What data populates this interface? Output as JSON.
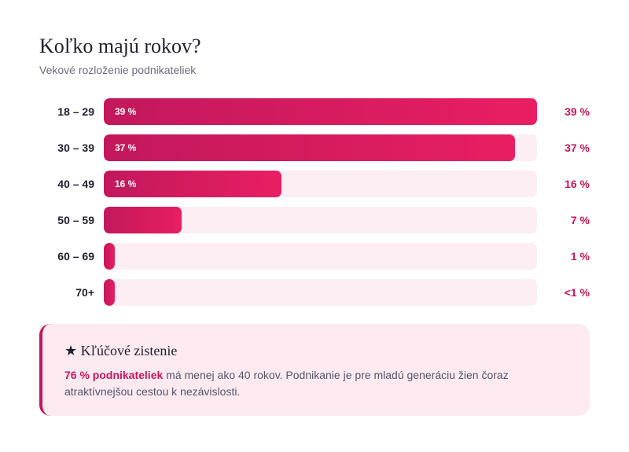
{
  "header": {
    "title": "Koľko majú rokov?",
    "subtitle": "Vekové rozloženie podnikateliek"
  },
  "chart_data": {
    "type": "bar",
    "orientation": "horizontal",
    "title": "Koľko majú rokov?",
    "subtitle": "Vekové rozloženie podnikateliek",
    "categories": [
      "18 – 29",
      "30 – 39",
      "40 – 49",
      "50 – 59",
      "60 – 69",
      "70+"
    ],
    "values": [
      39,
      37,
      16,
      7,
      1,
      0.5
    ],
    "value_labels": [
      "39 %",
      "37 %",
      "16 %",
      "7 %",
      "1 %",
      "<1 %"
    ],
    "inside_labels": [
      "39 %",
      "37 %",
      "16 %",
      "",
      "",
      ""
    ],
    "xlim": [
      0,
      39
    ],
    "grid": false,
    "colors": {
      "bar_start": "#c2185b",
      "bar_end": "#e91e63",
      "track": "#fdeef3",
      "value_text": "#c2185b"
    }
  },
  "callout": {
    "title": "★ Kľúčové zistenie",
    "highlight": "76 % podnikateliek",
    "text": " má menej ako 40 rokov. Podnikanie je pre mladú generáciu žien čoraz atraktívnejšou cestou k nezávislosti."
  }
}
